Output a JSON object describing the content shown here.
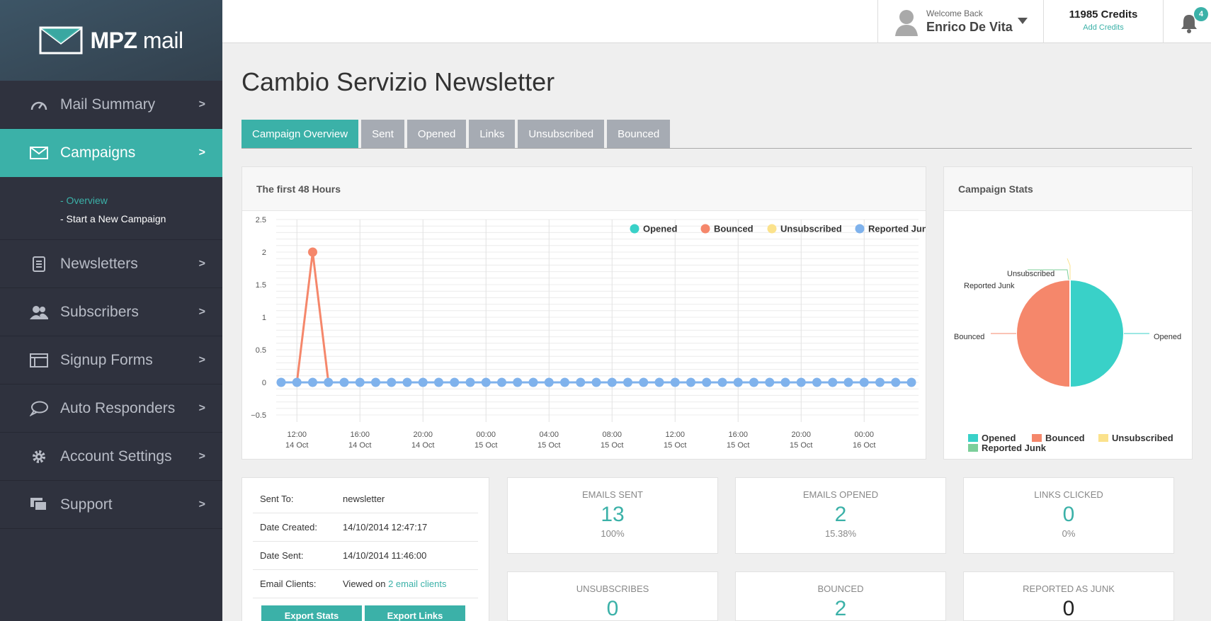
{
  "brand": {
    "name_bold": "MPZ",
    "name_light": "mail"
  },
  "nav": {
    "items": [
      {
        "label": "Mail Summary",
        "icon": "gauge-icon"
      },
      {
        "label": "Campaigns",
        "icon": "envelope-icon"
      },
      {
        "label": "Newsletters",
        "icon": "document-icon"
      },
      {
        "label": "Subscribers",
        "icon": "users-icon"
      },
      {
        "label": "Signup Forms",
        "icon": "form-icon"
      },
      {
        "label": "Auto Responders",
        "icon": "chat-bubble-icon"
      },
      {
        "label": "Account Settings",
        "icon": "gear-icon"
      },
      {
        "label": "Support",
        "icon": "support-icon"
      }
    ],
    "chevron": ">",
    "submenu": {
      "overview": "- Overview",
      "new_campaign": "- Start a New Campaign"
    }
  },
  "topbar": {
    "welcome": "Welcome Back",
    "user_name": "Enrico De Vita",
    "credits": "11985 Credits",
    "add_credits": "Add Credits",
    "notifications": "4"
  },
  "page": {
    "title": "Cambio Servizio Newsletter"
  },
  "tabs": [
    "Campaign Overview",
    "Sent",
    "Opened",
    "Links",
    "Unsubscribed",
    "Bounced"
  ],
  "chart_panel_title": "The first 48 Hours",
  "stats_panel_title": "Campaign Stats",
  "chart_data": [
    {
      "type": "line",
      "title": "The first 48 Hours",
      "x_ticks": [
        [
          "12:00",
          "14 Oct"
        ],
        [
          "16:00",
          "14 Oct"
        ],
        [
          "20:00",
          "14 Oct"
        ],
        [
          "00:00",
          "15 Oct"
        ],
        [
          "04:00",
          "15 Oct"
        ],
        [
          "08:00",
          "15 Oct"
        ],
        [
          "12:00",
          "15 Oct"
        ],
        [
          "16:00",
          "15 Oct"
        ],
        [
          "20:00",
          "15 Oct"
        ],
        [
          "00:00",
          "16 Oct"
        ]
      ],
      "y_ticks": [
        "2.5",
        "2",
        "1.5",
        "1",
        "0.5",
        "0",
        "−0.5"
      ],
      "ylim": [
        -0.5,
        2.5
      ],
      "x_start": "2014-10-14 11:00",
      "x_step_hours": 1,
      "series": [
        {
          "name": "Opened",
          "color": "#39d1c8",
          "values": [
            0,
            0,
            0,
            0,
            0,
            0,
            0,
            0,
            0,
            0,
            0,
            0,
            0,
            0,
            0,
            0,
            0,
            0,
            0,
            0,
            0,
            0,
            0,
            0,
            0,
            0,
            0,
            0,
            0,
            0,
            0,
            0,
            0,
            0,
            0,
            0,
            0,
            0,
            0,
            0,
            0
          ]
        },
        {
          "name": "Bounced",
          "color": "#f5876b",
          "values": [
            0,
            0,
            2,
            0,
            0,
            0,
            0,
            0,
            0,
            0,
            0,
            0,
            0,
            0,
            0,
            0,
            0,
            0,
            0,
            0,
            0,
            0,
            0,
            0,
            0,
            0,
            0,
            0,
            0,
            0,
            0,
            0,
            0,
            0,
            0,
            0,
            0,
            0,
            0,
            0,
            0
          ]
        },
        {
          "name": "Unsubscribed",
          "color": "#fbe28c",
          "values": [
            0,
            0,
            0,
            0,
            0,
            0,
            0,
            0,
            0,
            0,
            0,
            0,
            0,
            0,
            0,
            0,
            0,
            0,
            0,
            0,
            0,
            0,
            0,
            0,
            0,
            0,
            0,
            0,
            0,
            0,
            0,
            0,
            0,
            0,
            0,
            0,
            0,
            0,
            0,
            0,
            0
          ]
        },
        {
          "name": "Reported Junk",
          "color": "#7fb2ec",
          "values": [
            0,
            0,
            0,
            0,
            0,
            0,
            0,
            0,
            0,
            0,
            0,
            0,
            0,
            0,
            0,
            0,
            0,
            0,
            0,
            0,
            0,
            0,
            0,
            0,
            0,
            0,
            0,
            0,
            0,
            0,
            0,
            0,
            0,
            0,
            0,
            0,
            0,
            0,
            0,
            0,
            0
          ]
        }
      ],
      "legend": "top-right",
      "grid": true
    },
    {
      "type": "pie",
      "title": "Campaign Stats",
      "labels": [
        "Opened",
        "Bounced",
        "Unsubscribed",
        "Reported Junk"
      ],
      "values": [
        2,
        2,
        0,
        0
      ],
      "colors": [
        "#39d1c8",
        "#f5876b",
        "#fbe28c",
        "#7ccf9a"
      ],
      "legend": "bottom"
    }
  ],
  "campaign_info": {
    "rows": [
      {
        "key": "Sent To:",
        "value": "newsletter"
      },
      {
        "key": "Date Created:",
        "value": "14/10/2014 12:47:17"
      },
      {
        "key": "Date Sent:",
        "value": "14/10/2014 11:46:00"
      }
    ],
    "clients_key": "Email Clients:",
    "clients_prefix": "Viewed on ",
    "clients_link": "2 email clients",
    "buttons": [
      "Export Stats",
      "Export Links"
    ]
  },
  "stats": [
    {
      "label": "EMAILS SENT",
      "value": "13",
      "pct": "100%"
    },
    {
      "label": "EMAILS OPENED",
      "value": "2",
      "pct": "15.38%"
    },
    {
      "label": "LINKS CLICKED",
      "value": "0",
      "pct": "0%"
    },
    {
      "label": "UNSUBSCRIBES",
      "value": "0",
      "pct": ""
    },
    {
      "label": "BOUNCED",
      "value": "2",
      "pct": ""
    },
    {
      "label": "REPORTED AS JUNK",
      "value": "0",
      "pct": ""
    }
  ],
  "colors": {
    "accent": "#3bb1a8",
    "sidebar": "#2f323e"
  }
}
